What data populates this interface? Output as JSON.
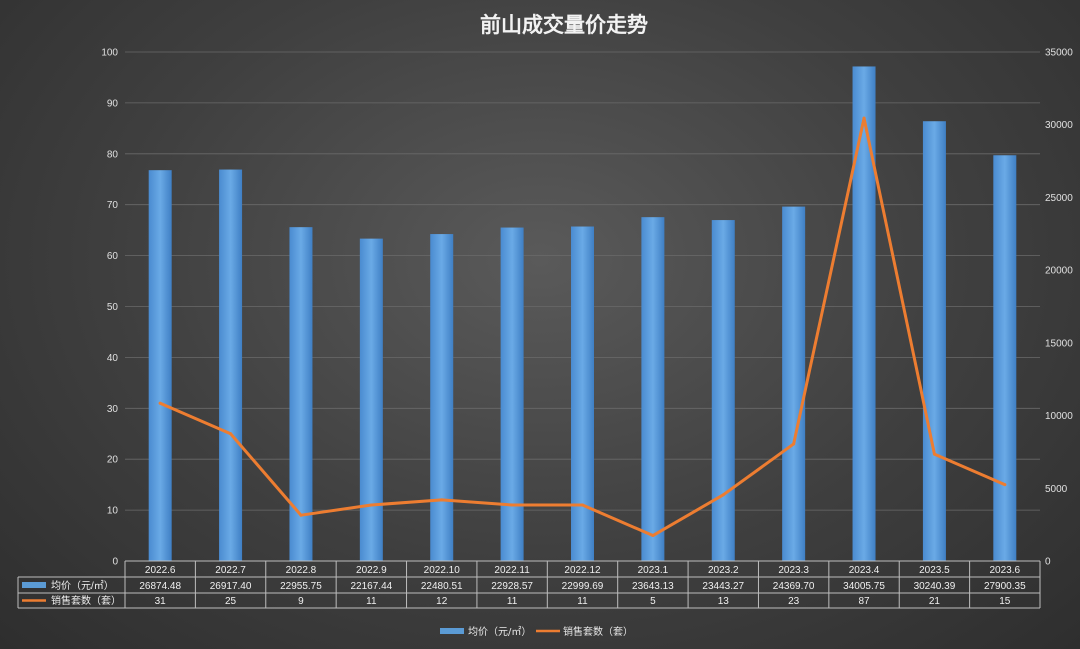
{
  "title": "前山成交量价走势",
  "chart_data": {
    "type": "bar",
    "title": "前山成交量价走势",
    "categories": [
      "2022.6",
      "2022.7",
      "2022.8",
      "2022.9",
      "2022.10",
      "2022.11",
      "2022.12",
      "2023.1",
      "2023.2",
      "2023.3",
      "2023.4",
      "2023.5",
      "2023.6"
    ],
    "series": [
      {
        "name": "均价（元/㎡）",
        "type": "bar",
        "axis": "right",
        "color": "#5b9bd5",
        "values": [
          26874.48,
          26917.4,
          22955.75,
          22167.44,
          22480.51,
          22928.57,
          22999.69,
          23643.13,
          23443.27,
          24369.7,
          34005.75,
          30240.39,
          27900.35
        ],
        "labels": [
          "26874.48",
          "26917.40",
          "22955.75",
          "22167.44",
          "22480.51",
          "22928.57",
          "22999.69",
          "23643.13",
          "23443.27",
          "24369.70",
          "34005.75",
          "30240.39",
          "27900.35"
        ]
      },
      {
        "name": "销售套数（套）",
        "type": "line",
        "axis": "left",
        "color": "#ed7d31",
        "values": [
          31,
          25,
          9,
          11,
          12,
          11,
          11,
          5,
          13,
          23,
          87,
          21,
          15
        ],
        "labels": [
          "31",
          "25",
          "9",
          "11",
          "12",
          "11",
          "11",
          "5",
          "13",
          "23",
          "87",
          "21",
          "15"
        ]
      }
    ],
    "y_left": {
      "min": 0,
      "max": 100,
      "ticks": [
        "0",
        "10",
        "20",
        "30",
        "40",
        "50",
        "60",
        "70",
        "80",
        "90",
        "100"
      ]
    },
    "y_right": {
      "min": 0,
      "max": 35000,
      "ticks": [
        "0",
        "5000",
        "10000",
        "15000",
        "20000",
        "25000",
        "30000",
        "35000"
      ]
    },
    "grid": true,
    "legend": "bottom",
    "data_table": true
  }
}
